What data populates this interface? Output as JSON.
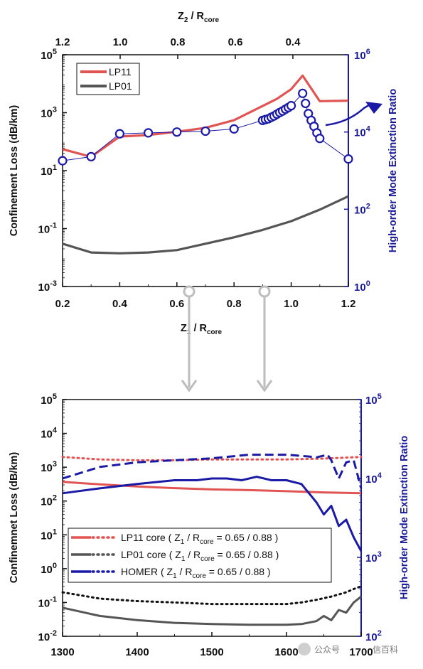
{
  "chart_data": [
    {
      "type": "line",
      "x": [
        0.2,
        0.3,
        0.4,
        0.5,
        0.6,
        0.7,
        0.8,
        0.9,
        0.95,
        1.0,
        1.05,
        1.1,
        1.2
      ],
      "series": [
        {
          "name": "LP11",
          "axis": "left",
          "color": "#e05454",
          "x": [
            0.2,
            0.3,
            0.4,
            0.5,
            0.6,
            0.7,
            0.8,
            0.9,
            0.95,
            1.0,
            1.04,
            1.1,
            1.2
          ],
          "values": [
            55,
            30,
            150,
            170,
            220,
            300,
            550,
            1700,
            3000,
            6500,
            19000,
            2500,
            2600
          ]
        },
        {
          "name": "LP01",
          "axis": "left",
          "color": "#555555",
          "x": [
            0.2,
            0.3,
            0.4,
            0.5,
            0.6,
            0.7,
            0.8,
            0.9,
            1.0,
            1.1,
            1.2
          ],
          "values": [
            0.03,
            0.015,
            0.014,
            0.015,
            0.018,
            0.03,
            0.05,
            0.09,
            0.18,
            0.45,
            1.3
          ]
        },
        {
          "name": "",
          "axis": "right",
          "color": "#1a1aa6",
          "x": [
            0.2,
            0.3,
            0.4,
            0.5,
            0.6,
            0.7,
            0.8,
            0.9,
            0.91,
            0.92,
            0.93,
            0.94,
            0.95,
            0.96,
            0.97,
            0.98,
            0.99,
            1.0,
            1.04,
            1.05,
            1.06,
            1.07,
            1.08,
            1.09,
            1.1,
            1.2
          ],
          "values": [
            1800,
            2300,
            9000,
            9500,
            10000,
            10500,
            12000,
            20000,
            21000,
            22000,
            24000,
            26000,
            29000,
            32000,
            35000,
            39000,
            43000,
            48000,
            100000,
            55000,
            30000,
            20000,
            14000,
            9500,
            6800,
            2000
          ]
        }
      ],
      "top_axis": {
        "label_main": "Z",
        "label_sub": "2",
        "label_rest": " / R",
        "label_rest_sub": "core",
        "ticks": [
          "1.2",
          "1.0",
          "0.8",
          "0.6",
          "0.4"
        ]
      },
      "bottom_axis": {
        "label_main": "Z",
        "label_sub": "1",
        "label_rest": " / R",
        "label_rest_sub": "core",
        "ticks": [
          "0.2",
          "0.4",
          "0.6",
          "0.8",
          "1.0",
          "1.2"
        ],
        "range": [
          0.2,
          1.2
        ]
      },
      "left_axis": {
        "label": "Confinement Loss (dB/km)",
        "range": [
          0.001,
          100000
        ],
        "scale": "log",
        "ticks": [
          {
            "base": "10",
            "exp": "-3"
          },
          {
            "base": "10",
            "exp": "-1"
          },
          {
            "base": "10",
            "exp": "1"
          },
          {
            "base": "10",
            "exp": "3"
          },
          {
            "base": "10",
            "exp": "5"
          }
        ]
      },
      "right_axis": {
        "label": "High-order Mode Extinction Ratio",
        "range": [
          1,
          1000000
        ],
        "scale": "log",
        "ticks": [
          {
            "base": "10",
            "exp": "0"
          },
          {
            "base": "10",
            "exp": "2"
          },
          {
            "base": "10",
            "exp": "4"
          },
          {
            "base": "10",
            "exp": "6"
          }
        ]
      },
      "legend": [
        {
          "label": "LP11",
          "color": "#e05454"
        },
        {
          "label": "LP01",
          "color": "#555555"
        }
      ],
      "legend_position": "top-left"
    },
    {
      "type": "line",
      "x_range": [
        1300,
        1700
      ],
      "series": [
        {
          "name": "LP11 core 0.65 solid",
          "axis": "left",
          "style": "solid",
          "color": "#e05454",
          "x": [
            1300,
            1350,
            1400,
            1450,
            1500,
            1550,
            1600,
            1650,
            1700
          ],
          "values": [
            370,
            310,
            270,
            240,
            220,
            210,
            195,
            180,
            170
          ]
        },
        {
          "name": "LP11 core 0.88 dotted",
          "axis": "left",
          "style": "dotted",
          "color": "#e05454",
          "x": [
            1300,
            1350,
            1400,
            1450,
            1500,
            1550,
            1600,
            1650,
            1700
          ],
          "values": [
            2000,
            1700,
            1600,
            1600,
            1700,
            1700,
            1700,
            1800,
            2000
          ]
        },
        {
          "name": "LP01 core 0.65 solid",
          "axis": "left",
          "style": "solid",
          "color": "#555555",
          "x": [
            1300,
            1350,
            1400,
            1450,
            1500,
            1550,
            1600,
            1620,
            1640,
            1650,
            1660,
            1670,
            1680,
            1690,
            1700
          ],
          "values": [
            0.07,
            0.04,
            0.03,
            0.025,
            0.023,
            0.022,
            0.022,
            0.023,
            0.028,
            0.04,
            0.03,
            0.06,
            0.05,
            0.1,
            0.15
          ]
        },
        {
          "name": "LP01 core 0.88 dotted",
          "axis": "left",
          "style": "dotted",
          "color": "#111111",
          "x": [
            1300,
            1350,
            1400,
            1450,
            1500,
            1550,
            1600,
            1620,
            1640,
            1660,
            1680,
            1690,
            1700
          ],
          "values": [
            0.2,
            0.13,
            0.11,
            0.1,
            0.09,
            0.09,
            0.09,
            0.1,
            0.12,
            0.15,
            0.2,
            0.25,
            0.3
          ]
        },
        {
          "name": "HOMER 0.65 solid",
          "axis": "right",
          "style": "solid",
          "color": "#1a1aa6",
          "x": [
            1300,
            1350,
            1400,
            1450,
            1480,
            1500,
            1520,
            1540,
            1560,
            1580,
            1600,
            1620,
            1640,
            1650,
            1660,
            1670,
            1680,
            1690,
            1700
          ],
          "values": [
            6500,
            7500,
            8500,
            9500,
            9500,
            10000,
            10000,
            9500,
            10500,
            9500,
            9500,
            8500,
            5000,
            3500,
            4500,
            2500,
            3000,
            1800,
            1200
          ]
        },
        {
          "name": "HOMER 0.88 dashed",
          "axis": "right",
          "style": "dashed",
          "color": "#1a1aa6",
          "x": [
            1300,
            1350,
            1400,
            1450,
            1500,
            1550,
            1600,
            1630,
            1640,
            1655,
            1660,
            1670,
            1680,
            1690,
            1700
          ],
          "values": [
            10000,
            14000,
            16000,
            17000,
            18000,
            20000,
            20000,
            19000,
            18500,
            20000,
            17000,
            10000,
            16000,
            17000,
            7500
          ]
        }
      ],
      "bottom_axis": {
        "ticks": [
          "1300",
          "1400",
          "1500",
          "1600",
          "1700"
        ]
      },
      "left_axis": {
        "label": "Confinemnet Loss (dB/km)",
        "range": [
          0.01,
          100000
        ],
        "scale": "log",
        "ticks": [
          {
            "base": "10",
            "exp": "-2"
          },
          {
            "base": "10",
            "exp": "-1"
          },
          {
            "base": "10",
            "exp": "0"
          },
          {
            "base": "10",
            "exp": "1"
          },
          {
            "base": "10",
            "exp": "2"
          },
          {
            "base": "10",
            "exp": "3"
          },
          {
            "base": "10",
            "exp": "4"
          },
          {
            "base": "10",
            "exp": "5"
          }
        ]
      },
      "right_axis": {
        "label": "High-order Mode Extinction Ratio",
        "range": [
          100,
          100000
        ],
        "scale": "log",
        "ticks": [
          {
            "base": "10",
            "exp": "2"
          },
          {
            "base": "10",
            "exp": "3"
          },
          {
            "base": "10",
            "exp": "4"
          },
          {
            "base": "10",
            "exp": "5"
          }
        ]
      },
      "legend": [
        {
          "name": "LP11 core",
          "color": "#e05454",
          "z_sub": "1",
          "core_sub": "core",
          "ratio": " = 0.65 / 0.88 )"
        },
        {
          "name": "LP01 core",
          "color": "#555555",
          "z_sub": "1",
          "core_sub": "core",
          "ratio": " = 0.65 / 0.88 )"
        },
        {
          "name": "HOMER",
          "color": "#1a1aa6",
          "z_sub": "1",
          "core_sub": "core",
          "ratio": " = 0.65 / 0.88 )"
        }
      ],
      "legend_position": "lower-left"
    }
  ],
  "watermark": "公众号",
  "watermark2": "信百科"
}
